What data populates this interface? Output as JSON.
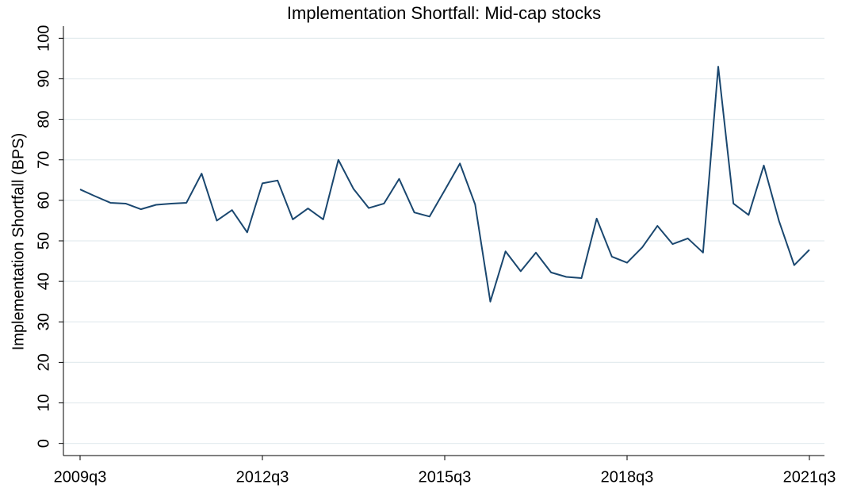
{
  "chart_data": {
    "type": "line",
    "title": "Implementation Shortfall: Mid-cap stocks",
    "y_label": "Implementation Shortfall (BPS)",
    "categories": [
      "2009q3",
      null,
      null,
      null,
      null,
      null,
      null,
      null,
      null,
      null,
      null,
      null,
      "2012q3",
      null,
      null,
      null,
      null,
      null,
      null,
      null,
      null,
      null,
      null,
      null,
      "2015q3",
      null,
      null,
      null,
      null,
      null,
      null,
      null,
      null,
      null,
      null,
      null,
      "2018q3",
      null,
      null,
      null,
      null,
      null,
      null,
      null,
      null,
      null,
      null,
      null,
      "2021q3"
    ],
    "series": [
      {
        "name": "Implementation Shortfall",
        "color": "#1a476f",
        "values": [
          62.7,
          61,
          59.4,
          59.2,
          57.8,
          58.9,
          59.2,
          59.4,
          66.6,
          55,
          57.6,
          52.1,
          64.2,
          64.9,
          55.3,
          58,
          55.3,
          70,
          62.8,
          58.1,
          59.2,
          65.3,
          57,
          56,
          62.5,
          69.1,
          59,
          35,
          47.4,
          42.5,
          47.1,
          42.2,
          41.1,
          40.8,
          55.5,
          46.1,
          44.6,
          48.4,
          53.7,
          49.2,
          50.6,
          47.1,
          93,
          59.2,
          56.4,
          68.6,
          54.9,
          44,
          47.8
        ]
      }
    ],
    "ylim": [
      -3,
      103
    ],
    "yticks": [
      0,
      10,
      20,
      30,
      40,
      50,
      60,
      70,
      80,
      90,
      100
    ],
    "grid": true
  }
}
